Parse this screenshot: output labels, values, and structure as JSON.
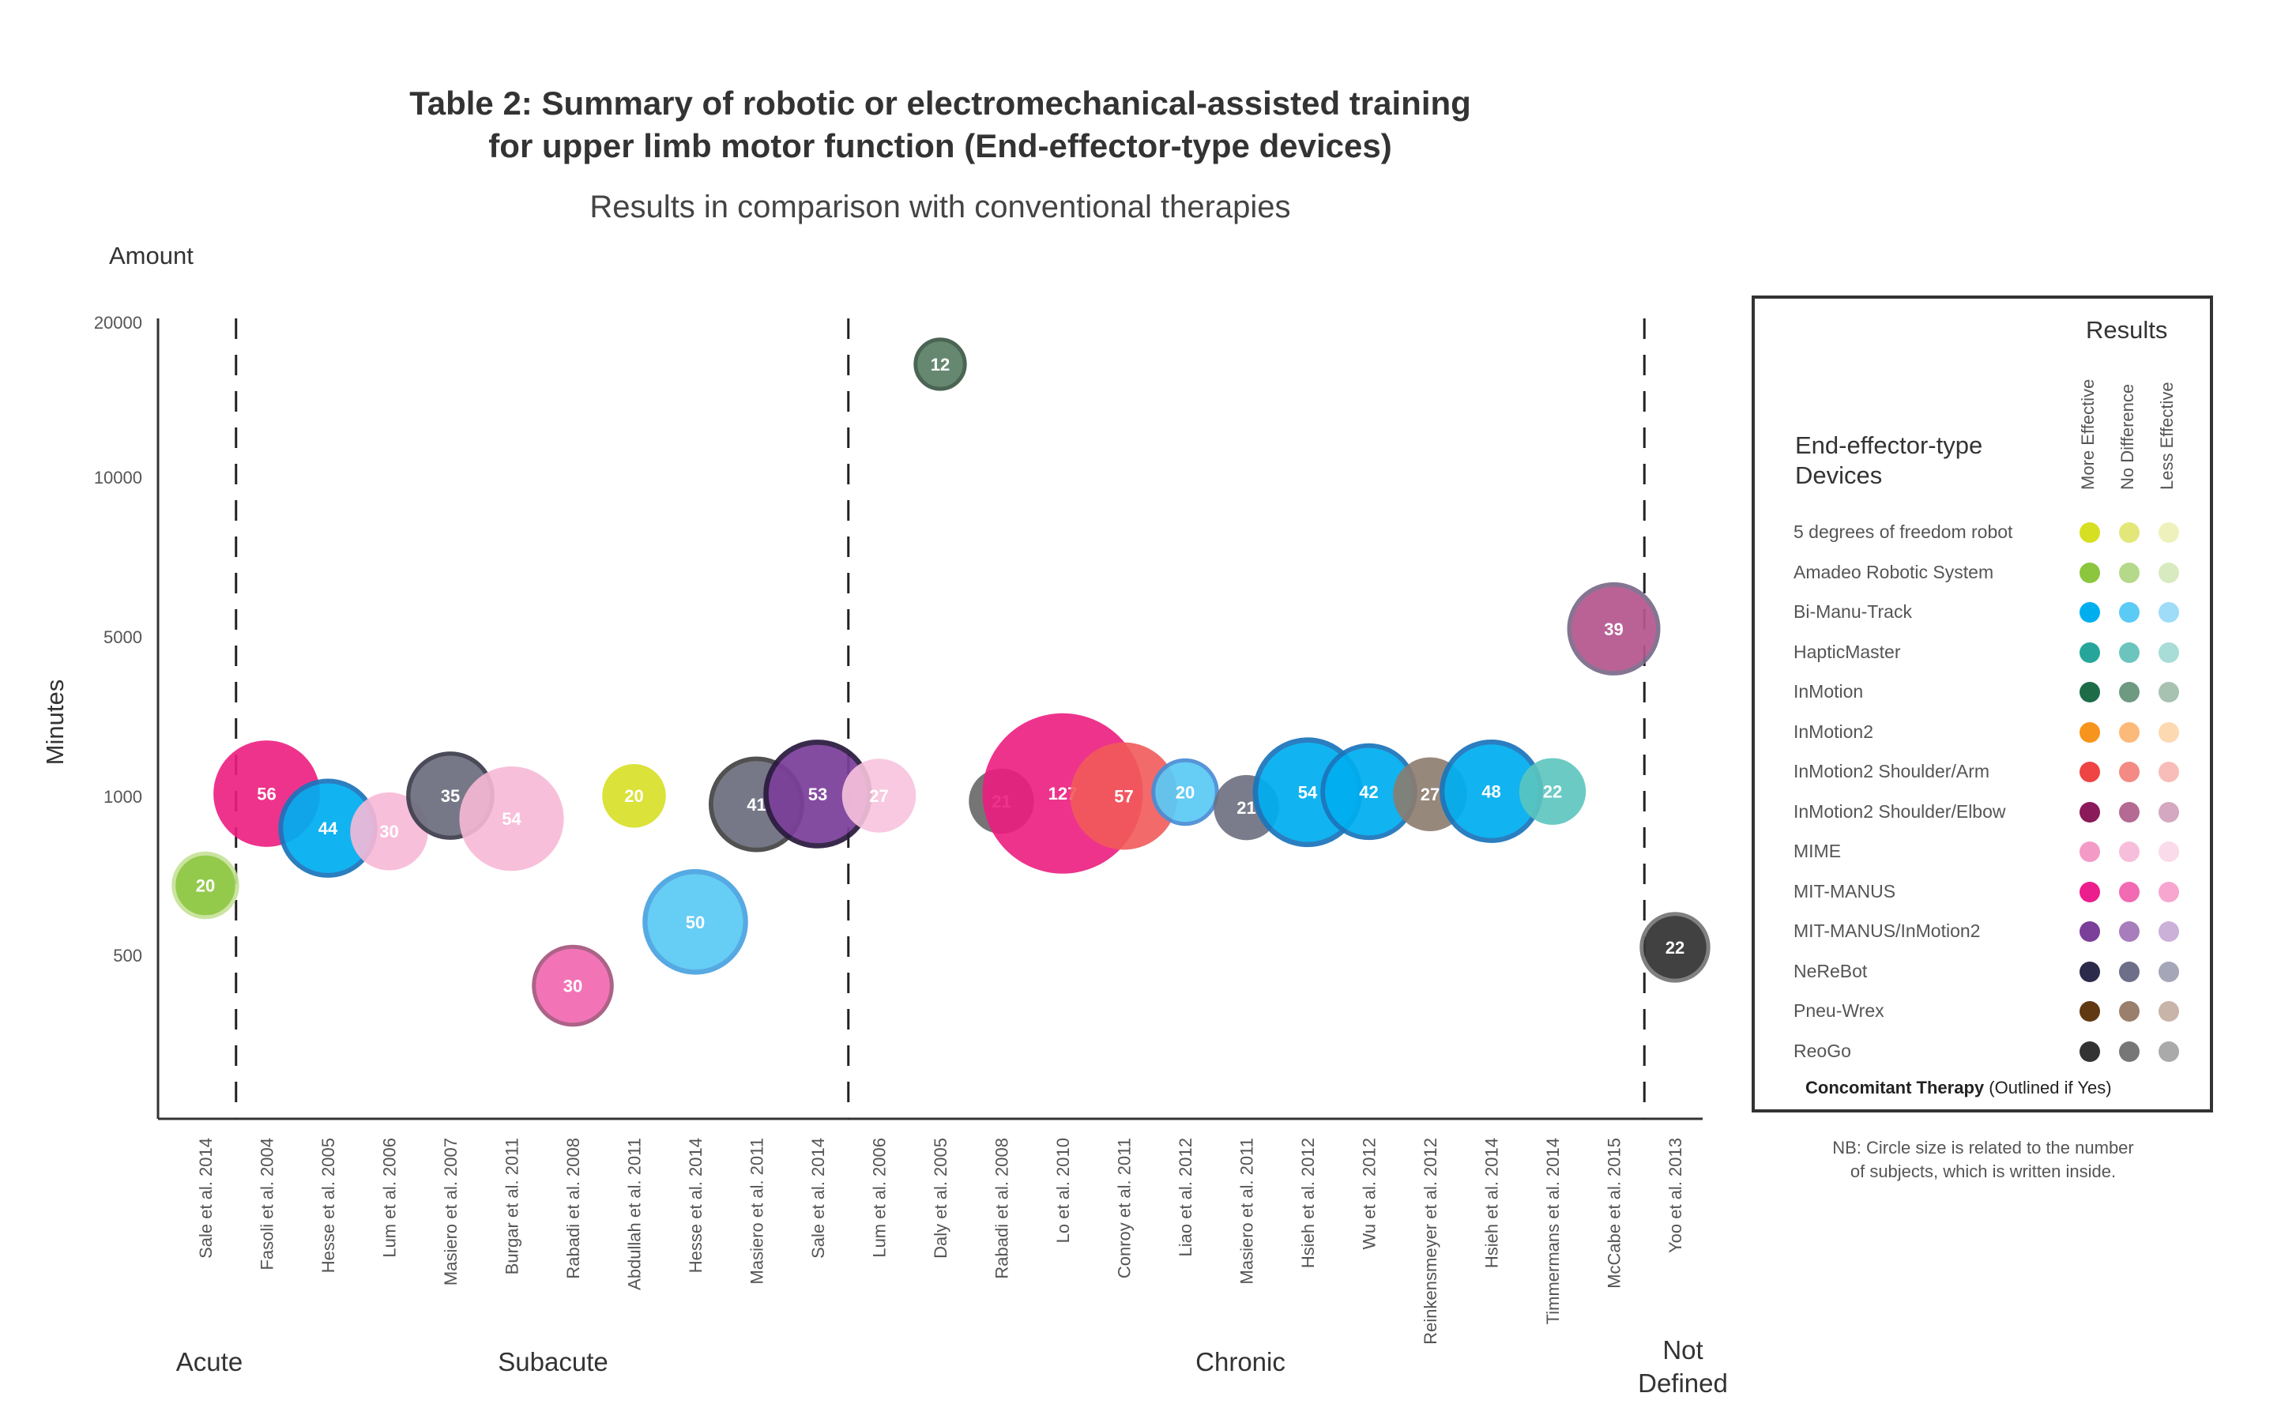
{
  "chart_data": {
    "type": "scatter",
    "title_line1": "Table 2: Summary of robotic or electromechanical-assisted training",
    "title_line2": "for upper limb motor function (End-effector-type devices)",
    "subtitle": "Results in comparison with conventional therapies",
    "ylabel": "Minutes",
    "ylabel_top": "Amount",
    "yticks": [
      {
        "label": "20000",
        "value": 20000
      },
      {
        "label": "10000",
        "value": 10000
      },
      {
        "label": "5000",
        "value": 5000
      },
      {
        "label": "1000",
        "value": 1000
      },
      {
        "label": "500",
        "value": 500
      }
    ],
    "phases": [
      {
        "label": "Acute"
      },
      {
        "label": "Subacute"
      },
      {
        "label": "Chronic"
      },
      {
        "label": "Not\nDefined"
      }
    ],
    "studies": [
      {
        "study": "Sale et al. 2014",
        "minutes": 720,
        "subjects": 20,
        "color": "#8cc63f",
        "outline": "#c7e39a"
      },
      {
        "study": "Fasoli et al. 2004",
        "minutes": 1070,
        "subjects": 56,
        "color": "#ec1d7f",
        "outline": null
      },
      {
        "study": "Hesse et al. 2005",
        "minutes": 900,
        "subjects": 44,
        "color": "#00aeef",
        "outline": "#1c75bc"
      },
      {
        "study": "Lum et al. 2006",
        "minutes": 890,
        "subjects": 30,
        "color": "#f7b8d6",
        "outline": null
      },
      {
        "study": "Masiero et al. 2007",
        "minutes": 1020,
        "subjects": 35,
        "color": "#6d6e7e",
        "outline": "#3d3d4d"
      },
      {
        "study": "Burgar et al. 2011",
        "minutes": 930,
        "subjects": 54,
        "color": "#f7b8d6",
        "outline": null
      },
      {
        "study": "Rabadi et al. 2008",
        "minutes": 405,
        "subjects": 30,
        "color": "#f26ab2",
        "outline": "#a6587e"
      },
      {
        "study": "Abdullah et al. 2011",
        "minutes": 1015,
        "subjects": 20,
        "color": "#d7df23",
        "outline": null
      },
      {
        "study": "Hesse et al. 2014",
        "minutes": 605,
        "subjects": 50,
        "color": "#5bcaf5",
        "outline": "#4aa3e0"
      },
      {
        "study": "Masiero et al. 2011",
        "minutes": 975,
        "subjects": 41,
        "color": "#6d6e7e",
        "outline": "#444"
      },
      {
        "study": "Sale et al. 2014",
        "minutes": 1060,
        "subjects": 53,
        "color": "#7b3f9a",
        "outline": "#2b1a3f"
      },
      {
        "study": "Lum et al. 2006",
        "minutes": 1020,
        "subjects": 27,
        "color": "#f7c3dd",
        "outline": null
      },
      {
        "study": "Daly et al. 2005",
        "minutes": 17300,
        "subjects": 12,
        "color": "#5b8067",
        "outline": "#3e5a47"
      },
      {
        "study": "Rabadi et al. 2008",
        "minutes": 985,
        "subjects": 21,
        "color": "#666666",
        "outline": null
      },
      {
        "study": "Lo et al. 2010",
        "minutes": 1075,
        "subjects": 127,
        "color": "#ec1d7f",
        "outline": null
      },
      {
        "study": "Conroy et al. 2011",
        "minutes": 1010,
        "subjects": 57,
        "color": "#f15a5a",
        "outline": null
      },
      {
        "study": "Liao et al. 2012",
        "minutes": 1110,
        "subjects": 20,
        "color": "#5bcaf5",
        "outline": "#4a8ed6"
      },
      {
        "study": "Masiero et al. 2011",
        "minutes": 965,
        "subjects": 21,
        "color": "#6d6e7e",
        "outline": null
      },
      {
        "study": "Hsieh et al. 2012",
        "minutes": 1105,
        "subjects": 54,
        "color": "#00aeef",
        "outline": "#1c75bc"
      },
      {
        "study": "Wu et al. 2012",
        "minutes": 1120,
        "subjects": 42,
        "color": "#00aeef",
        "outline": "#1c75bc"
      },
      {
        "study": "Reinkensmeyer et al. 2012",
        "minutes": 1055,
        "subjects": 27,
        "color": "#8c7b6e",
        "outline": null
      },
      {
        "study": "Hsieh et al. 2014",
        "minutes": 1130,
        "subjects": 48,
        "color": "#00aeef",
        "outline": "#1c75bc"
      },
      {
        "study": "Timmermans et al. 2014",
        "minutes": 1125,
        "subjects": 22,
        "color": "#5bc5be",
        "outline": null
      },
      {
        "study": "McCabe et al. 2015",
        "minutes": 5250,
        "subjects": 39,
        "color": "#b5578f",
        "outline": "#7c6b8a"
      },
      {
        "study": "Yoo et al. 2013",
        "minutes": 525,
        "subjects": 22,
        "color": "#333333",
        "outline": "#777"
      }
    ]
  },
  "legend": {
    "results_title": "Results",
    "col_labels": [
      "More Effective",
      "No Difference",
      "Less Effective"
    ],
    "devices_title": "End-effector-type\nDevices",
    "rows": [
      {
        "name": "5 degrees of freedom robot",
        "colors": [
          "#d7df23",
          "#e3e77a",
          "#eff1bd"
        ]
      },
      {
        "name": "Amadeo Robotic System",
        "colors": [
          "#8cc63f",
          "#b4d98a",
          "#d8ebc0"
        ]
      },
      {
        "name": "Bi-Manu-Track",
        "colors": [
          "#00aeef",
          "#5bcaf5",
          "#9edcf8"
        ]
      },
      {
        "name": "HapticMaster",
        "colors": [
          "#26a69a",
          "#6cc5bc",
          "#a8dcd6"
        ]
      },
      {
        "name": "InMotion",
        "colors": [
          "#1e6b48",
          "#6f9a82",
          "#a8c2b2"
        ]
      },
      {
        "name": "InMotion2",
        "colors": [
          "#f7941d",
          "#fbb97a",
          "#fdd9b2"
        ]
      },
      {
        "name": "InMotion2 Shoulder/Arm",
        "colors": [
          "#ee4444",
          "#f38a84",
          "#f8bdb8"
        ]
      },
      {
        "name": "InMotion2 Shoulder/Elbow",
        "colors": [
          "#8b1a5a",
          "#b56a93",
          "#d4a8c0"
        ]
      },
      {
        "name": "MIME",
        "colors": [
          "#f49ac6",
          "#f7bedb",
          "#fadbea"
        ]
      },
      {
        "name": "MIT-MANUS",
        "colors": [
          "#ec1d8c",
          "#f26ab2",
          "#f7a6d0"
        ]
      },
      {
        "name": "MIT-MANUS/InMotion2",
        "colors": [
          "#7b3f9a",
          "#a77dbb",
          "#cbb0d8"
        ]
      },
      {
        "name": "NeReBot",
        "colors": [
          "#2b2a4a",
          "#6d6e88",
          "#a5a6b8"
        ]
      },
      {
        "name": "Pneu-Wrex",
        "colors": [
          "#603913",
          "#9a7f6c",
          "#c8b4a8"
        ]
      },
      {
        "name": "ReoGo",
        "colors": [
          "#333333",
          "#777777",
          "#aaaaaa"
        ]
      }
    ],
    "footer_bold": "Concomitant Therapy",
    "footer_rest": " (Outlined if Yes)"
  },
  "note": "NB: Circle size is related to the number\nof subjects, which is written inside."
}
